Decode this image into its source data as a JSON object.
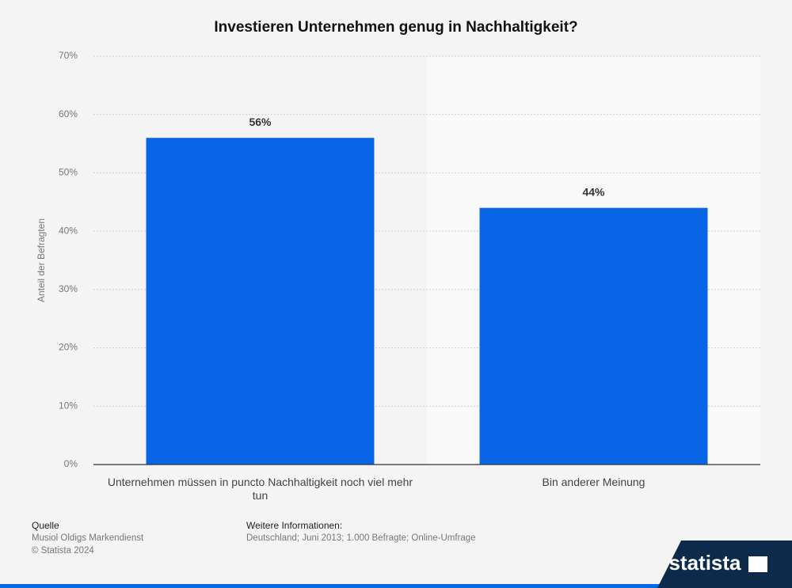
{
  "chart_data": {
    "type": "bar",
    "title": "Investieren Unternehmen genug in Nachhaltigkeit?",
    "ylabel": "Anteil der Befragten",
    "categories": [
      "Unternehmen müssen in puncto Nachhaltigkeit noch viel mehr tun",
      "Bin anderer Meinung"
    ],
    "values": [
      56,
      44
    ],
    "value_labels": [
      "56%",
      "44%"
    ],
    "color": "#0866e6",
    "ylim": [
      0,
      70
    ],
    "yticks": [
      {
        "value": 0,
        "label": "0%"
      },
      {
        "value": 10,
        "label": "10%"
      },
      {
        "value": 20,
        "label": "20%"
      },
      {
        "value": 30,
        "label": "30%"
      },
      {
        "value": 40,
        "label": "40%"
      },
      {
        "value": 50,
        "label": "50%"
      },
      {
        "value": 60,
        "label": "60%"
      },
      {
        "value": 70,
        "label": "70%"
      }
    ],
    "grid": true
  },
  "footer": {
    "source_title": "Quelle",
    "source_lines": [
      "Musiol Oldigs Markendienst",
      "© Statista 2024"
    ],
    "info_title": "Weitere Informationen:",
    "info_text": "Deutschland; Juni 2013; 1.000 Befragte; Online-Umfrage",
    "logo": "statista"
  }
}
